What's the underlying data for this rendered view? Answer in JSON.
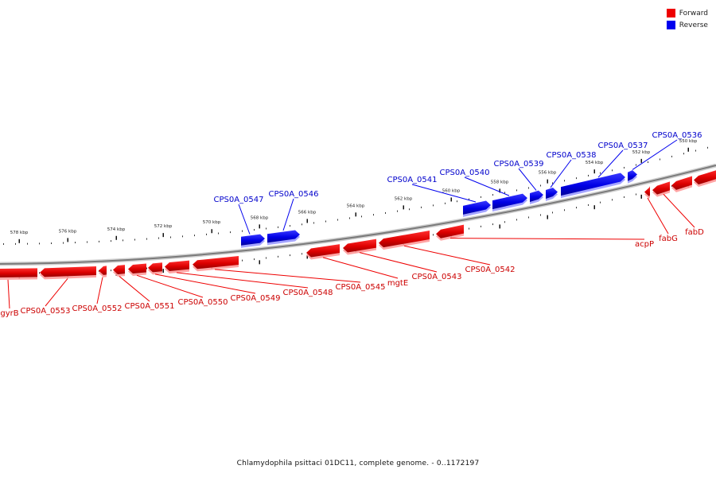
{
  "legend": {
    "forward": {
      "label": "Forward",
      "color": "#ee0000"
    },
    "reverse": {
      "label": "Reverse",
      "color": "#0000ee"
    }
  },
  "caption": "Chlamydophila psittaci 01DC11, complete genome. - 0..1172197",
  "axis": {
    "ticks": [
      "578 kbp",
      "576 kbp",
      "574 kbp",
      "572 kbp",
      "570 kbp",
      "568 kbp",
      "566 kbp",
      "564 kbp",
      "562 kbp",
      "560 kbp",
      "558 kbp",
      "556 kbp",
      "554 kbp",
      "552 kbp",
      "550 kbp"
    ]
  },
  "genes": {
    "reverse": [
      {
        "label": "CPS0A_0547"
      },
      {
        "label": "CPS0A_0546"
      },
      {
        "label": "CPS0A_0541"
      },
      {
        "label": "CPS0A_0540"
      },
      {
        "label": "CPS0A_0539"
      },
      {
        "label": "CPS0A_0538"
      },
      {
        "label": "CPS0A_0537"
      },
      {
        "label": "CPS0A_0536"
      }
    ],
    "forward": [
      {
        "label": "gyrB"
      },
      {
        "label": "CPS0A_0553"
      },
      {
        "label": "CPS0A_0552"
      },
      {
        "label": "CPS0A_0551"
      },
      {
        "label": "CPS0A_0550"
      },
      {
        "label": "CPS0A_0549"
      },
      {
        "label": "CPS0A_0548"
      },
      {
        "label": "CPS0A_0545"
      },
      {
        "label": "mgtE"
      },
      {
        "label": "CPS0A_0543"
      },
      {
        "label": "CPS0A_0542"
      },
      {
        "label": "acpP"
      },
      {
        "label": "fabG"
      },
      {
        "label": "fabD"
      }
    ]
  }
}
